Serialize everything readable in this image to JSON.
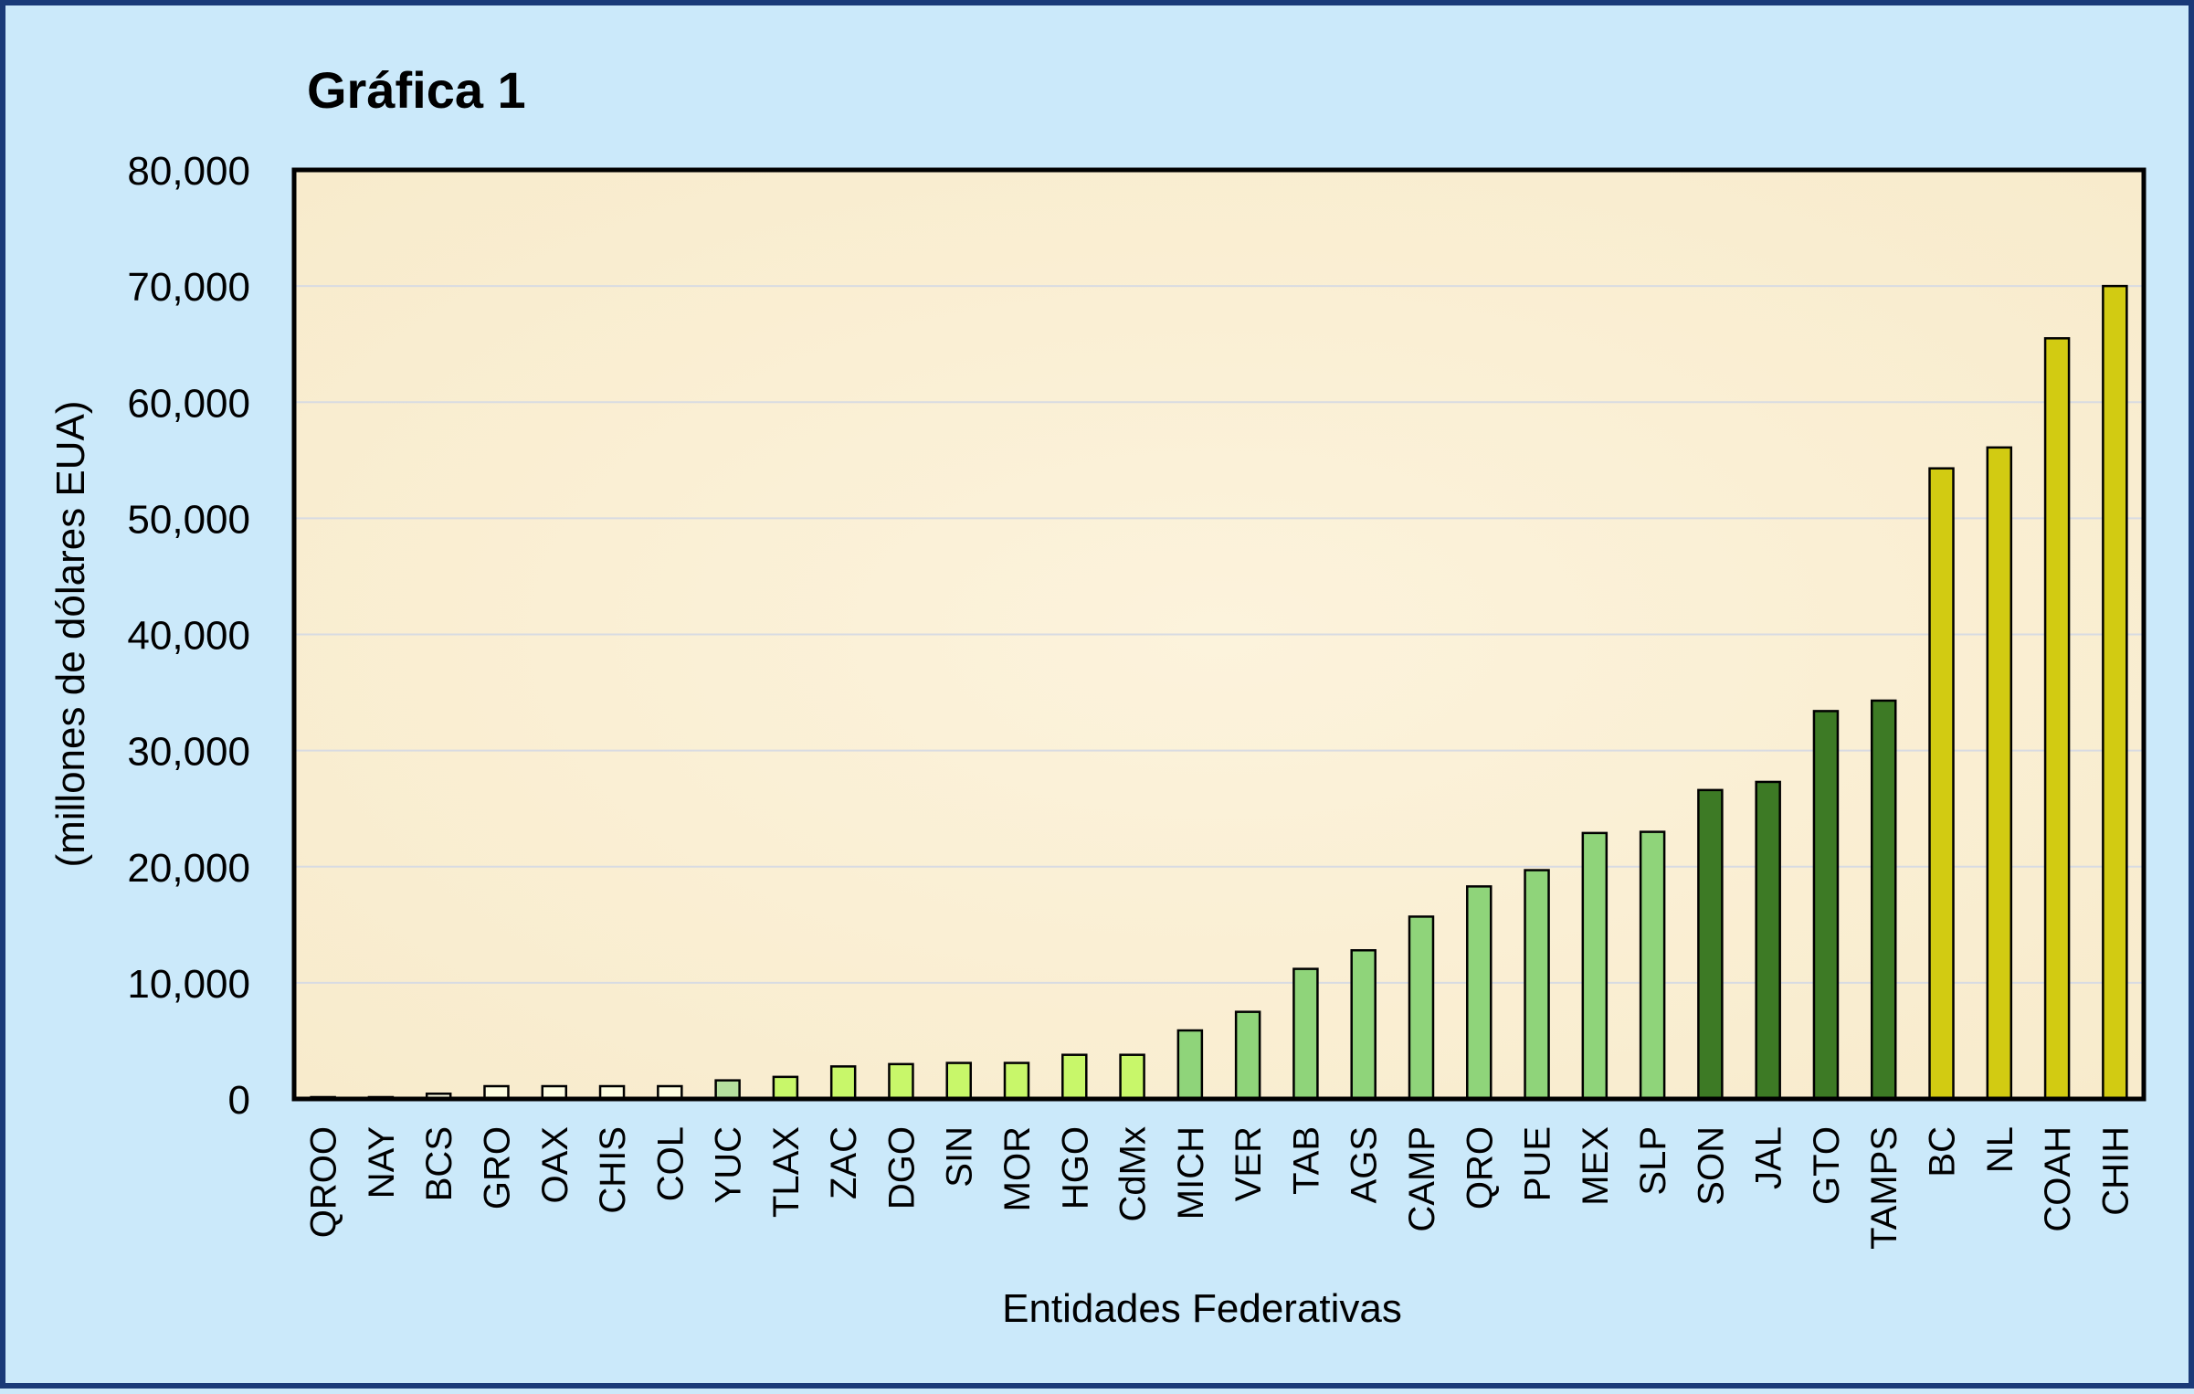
{
  "chart_data": {
    "type": "bar",
    "title": "Gráfica 1",
    "xlabel": "Entidades Federativas",
    "ylabel": "(millones de dólares EUA)",
    "ylim": [
      0,
      80000
    ],
    "yticks": [
      "0",
      "10,000",
      "20,000",
      "30,000",
      "40,000",
      "50,000",
      "60,000",
      "70,000",
      "80,000"
    ],
    "grid": true,
    "categories": [
      "QROO",
      "NAY",
      "BCS",
      "GRO",
      "OAX",
      "CHIS",
      "COL",
      "YUC",
      "TLAX",
      "ZAC",
      "DGO",
      "SIN",
      "MOR",
      "HGO",
      "CdMx",
      "MICH",
      "VER",
      "TAB",
      "AGS",
      "CAMP",
      "QRO",
      "PUE",
      "MEX",
      "SLP",
      "SON",
      "JAL",
      "GTO",
      "TAMPS",
      "BC",
      "NL",
      "COAH",
      "CHIH"
    ],
    "values": [
      50,
      150,
      450,
      1100,
      1100,
      1100,
      1100,
      1600,
      1900,
      2800,
      3000,
      3100,
      3100,
      3800,
      3800,
      5900,
      7500,
      11200,
      12800,
      15700,
      18300,
      19700,
      22900,
      23000,
      26600,
      27300,
      33400,
      34300,
      54300,
      56100,
      65500,
      70000
    ],
    "bar_colors": [
      "#fdfde2",
      "#fdfde2",
      "#fdfde2",
      "#fdfde2",
      "#fdfde2",
      "#fdfde2",
      "#fdfde2",
      "#b5df9e",
      "#c8f76a",
      "#c8f76a",
      "#c8f76a",
      "#c8f76a",
      "#c8f76a",
      "#c8f76a",
      "#c8f76a",
      "#8fd47a",
      "#8fd47a",
      "#8fd47a",
      "#8fd47a",
      "#8fd47a",
      "#8fd47a",
      "#8fd47a",
      "#8fd47a",
      "#8fd47a",
      "#3d7a25",
      "#3d7a25",
      "#3d7a25",
      "#3d7a25",
      "#d2cb12",
      "#d2cb12",
      "#d2cb12",
      "#d2cb12"
    ],
    "colors": {
      "background": "#cbe9fa",
      "frame_border": "#1a3a78",
      "plot_area": "#fbf1d7",
      "gridline": "#d8dbe2",
      "bar_outline": "#000000"
    }
  }
}
